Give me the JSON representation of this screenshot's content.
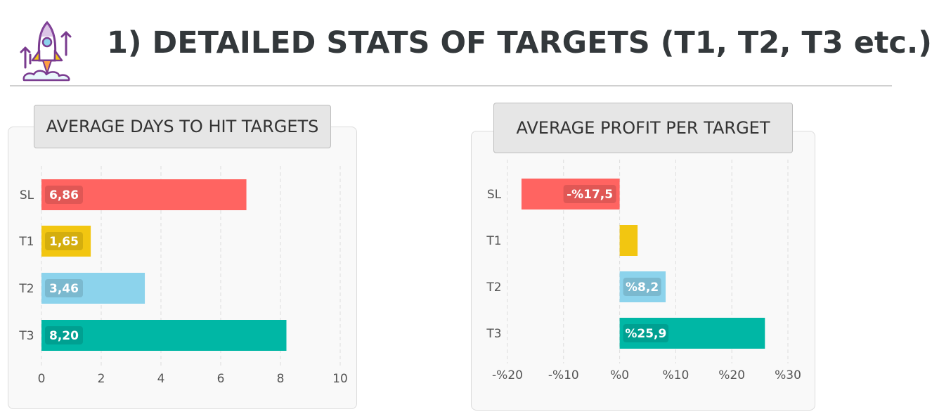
{
  "header": {
    "title": "1) DETAILED STATS OF TARGETS (T1, T2, T3 etc.)"
  },
  "icons": {
    "logo": "rocket-launch-icon"
  },
  "colors": {
    "SL": "#ff6461",
    "T1": "#f2c611",
    "T2": "#8cd3ec",
    "T3": "#00b7a5",
    "title_text": "#33383b"
  },
  "chart_data": [
    {
      "type": "bar",
      "orientation": "horizontal",
      "title": "AVERAGE DAYS TO HIT TARGETS",
      "categories": [
        "SL",
        "T1",
        "T2",
        "T3"
      ],
      "values": [
        6.86,
        1.65,
        3.46,
        8.2
      ],
      "data_labels": [
        "6,86",
        "1,65",
        "3,46",
        "8,20"
      ],
      "xlim": [
        0,
        10
      ],
      "x_ticks": [
        0,
        2,
        4,
        6,
        8,
        10
      ],
      "x_tick_labels": [
        "0",
        "2",
        "4",
        "6",
        "8",
        "10"
      ],
      "grid": true
    },
    {
      "type": "bar",
      "orientation": "horizontal",
      "title": "AVERAGE PROFIT PER TARGET",
      "categories": [
        "SL",
        "T1",
        "T2",
        "T3"
      ],
      "values": [
        -17.5,
        3.2,
        8.2,
        25.9
      ],
      "data_labels": [
        "-%17,5",
        "",
        "%8,2",
        "%25,9"
      ],
      "xlim": [
        -20,
        30
      ],
      "x_ticks": [
        -20,
        -10,
        0,
        10,
        20,
        30
      ],
      "x_tick_labels": [
        "-%20",
        "-%10",
        "%0",
        "%10",
        "%20",
        "%30"
      ],
      "grid": true
    }
  ]
}
